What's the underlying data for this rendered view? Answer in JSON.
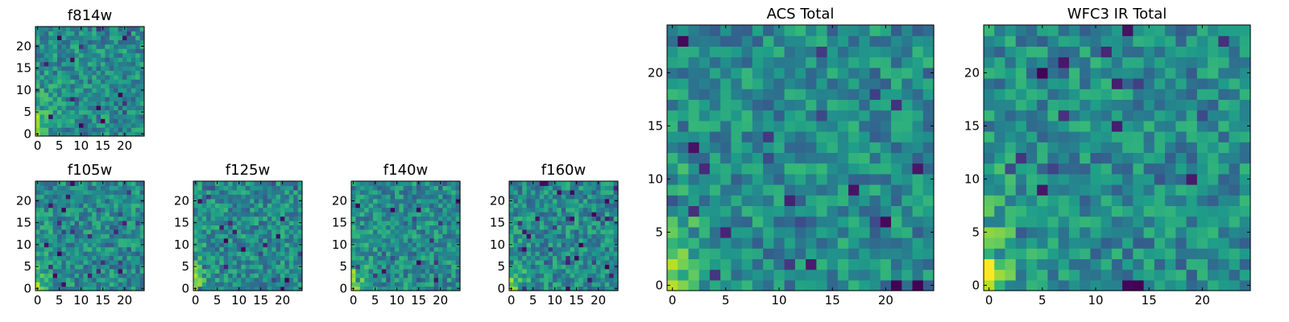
{
  "chart_data": [
    {
      "type": "heatmap",
      "title": "f814w",
      "colormap": "viridis",
      "grid_size": [
        25,
        25
      ],
      "xticks": [
        "0",
        "5",
        "10",
        "15",
        "20"
      ],
      "yticks": [
        "0",
        "5",
        "10",
        "15",
        "20"
      ],
      "xlim": [
        -0.5,
        24.5
      ],
      "ylim": [
        -0.5,
        24.5
      ],
      "bright_corner": "bottom-left"
    },
    {
      "type": "heatmap",
      "title": "f105w",
      "colormap": "viridis",
      "grid_size": [
        25,
        25
      ],
      "xticks": [
        "0",
        "5",
        "10",
        "15",
        "20"
      ],
      "yticks": [
        "0",
        "5",
        "10",
        "15",
        "20"
      ],
      "xlim": [
        -0.5,
        24.5
      ],
      "ylim": [
        -0.5,
        24.5
      ],
      "bright_corner": "bottom-left"
    },
    {
      "type": "heatmap",
      "title": "f125w",
      "colormap": "viridis",
      "grid_size": [
        25,
        25
      ],
      "xticks": [
        "0",
        "5",
        "10",
        "15",
        "20"
      ],
      "yticks": [
        "0",
        "5",
        "10",
        "15",
        "20"
      ],
      "xlim": [
        -0.5,
        24.5
      ],
      "ylim": [
        -0.5,
        24.5
      ],
      "bright_corner": "bottom-left"
    },
    {
      "type": "heatmap",
      "title": "f140w",
      "colormap": "viridis",
      "grid_size": [
        25,
        25
      ],
      "xticks": [
        "0",
        "5",
        "10",
        "15",
        "20"
      ],
      "yticks": [
        "0",
        "5",
        "10",
        "15",
        "20"
      ],
      "xlim": [
        -0.5,
        24.5
      ],
      "ylim": [
        -0.5,
        24.5
      ],
      "bright_corner": "bottom-left"
    },
    {
      "type": "heatmap",
      "title": "f160w",
      "colormap": "viridis",
      "grid_size": [
        25,
        25
      ],
      "xticks": [
        "0",
        "5",
        "10",
        "15",
        "20"
      ],
      "yticks": [
        "0",
        "5",
        "10",
        "15",
        "20"
      ],
      "xlim": [
        -0.5,
        24.5
      ],
      "ylim": [
        -0.5,
        24.5
      ],
      "bright_corner": "bottom-left"
    },
    {
      "type": "heatmap",
      "title": "ACS Total",
      "colormap": "viridis",
      "grid_size": [
        25,
        25
      ],
      "xticks": [
        "0",
        "5",
        "10",
        "15",
        "20"
      ],
      "yticks": [
        "0",
        "5",
        "10",
        "15",
        "20"
      ],
      "xlim": [
        -0.5,
        24.5
      ],
      "ylim": [
        -0.5,
        24.5
      ],
      "bright_corner": "bottom-left"
    },
    {
      "type": "heatmap",
      "title": "WFC3 IR Total",
      "colormap": "viridis",
      "grid_size": [
        25,
        25
      ],
      "xticks": [
        "0",
        "5",
        "10",
        "15",
        "20"
      ],
      "yticks": [
        "0",
        "5",
        "10",
        "15",
        "20"
      ],
      "xlim": [
        -0.5,
        24.5
      ],
      "ylim": [
        -0.5,
        24.5
      ],
      "bright_corner": "bottom-left"
    }
  ]
}
